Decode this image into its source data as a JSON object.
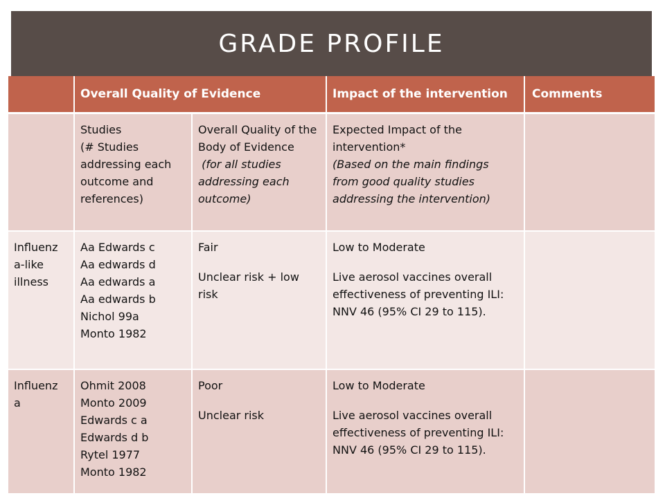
{
  "title": "GRADE PROFILE",
  "columns": {
    "col0": "",
    "quality": "Overall Quality of Evidence",
    "impact": "Impact of the intervention",
    "comments": "Comments"
  },
  "subheader": {
    "studies": [
      "Studies",
      "(# Studies addressing each outcome and references)"
    ],
    "quality_title": "Overall Quality of the Body of Evidence",
    "quality_note": " (for all studies addressing each outcome)",
    "impact_title": "Expected Impact of the intervention*",
    "impact_note": "(Based on the main findings from good quality studies addressing the intervention)"
  },
  "rows": [
    {
      "outcome": "Influenz a-like illness",
      "studies": [
        "Aa Edwards c",
        "Aa edwards d",
        "Aa edwards a",
        "Aa edwards b",
        "Nichol 99a",
        "Monto 1982"
      ],
      "quality": "Fair",
      "quality_detail": "Unclear risk + low risk",
      "impact": "Low to Moderate",
      "impact_detail": "Live aerosol vaccines overall effectiveness of preventing ILI: NNV 46 (95% CI 29 to 115).",
      "comments": ""
    },
    {
      "outcome": "Influenz a",
      "studies": [
        "Ohmit 2008",
        "Monto 2009",
        "Edwards c a",
        "Edwards d b",
        "Rytel 1977",
        "Monto 1982"
      ],
      "quality": "Poor",
      "quality_detail": "Unclear risk",
      "impact": "Low to Moderate",
      "impact_detail": "Live aerosol vaccines overall effectiveness of preventing ILI: NNV 46 (95% CI 29 to 115).",
      "comments": ""
    }
  ],
  "colors": {
    "title_bar": "#574c48",
    "header": "#c0634c",
    "band_dark": "#e8cfcb",
    "band_light": "#f3e7e5"
  }
}
